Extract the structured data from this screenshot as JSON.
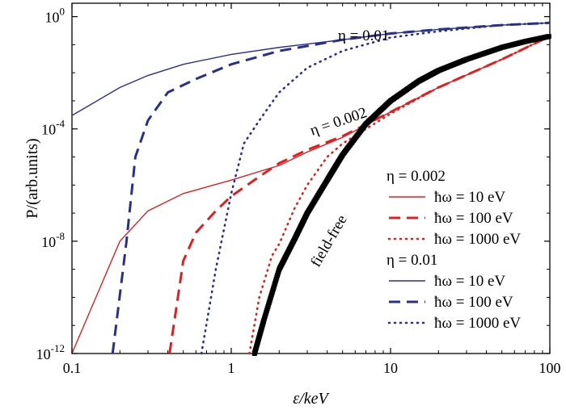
{
  "chart_data": {
    "type": "line",
    "x_scale": "log",
    "y_scale": "log",
    "xlim": [
      0.1,
      100
    ],
    "ylim": [
      1e-12,
      3
    ],
    "xlabel": "ε/keV",
    "ylabel": "P/(arb.units)",
    "x_ticks": [
      "0.1",
      "1",
      "10",
      "100"
    ],
    "y_ticks": [
      {
        "base": "10",
        "exp": "0"
      },
      {
        "base": "10",
        "exp": "-4"
      },
      {
        "base": "10",
        "exp": "-8"
      },
      {
        "base": "10",
        "exp": "-12"
      }
    ],
    "legend": {
      "position": "right",
      "groups": [
        {
          "title": "η = 0.002",
          "entries": [
            "ħω = 10 eV",
            "ħω = 100 eV",
            "ħω = 1000 eV"
          ]
        },
        {
          "title": "η = 0.01",
          "entries": [
            "ħω = 10 eV",
            "ħω = 100 eV",
            "ħω = 1000 eV"
          ]
        }
      ]
    },
    "annotations": [
      "η = 0.01",
      "η = 0.002",
      "field-free"
    ],
    "colors": {
      "eta_0002": "#e02020",
      "eta_001": "#2a2f8f",
      "field_free": "#000000"
    },
    "series": [
      {
        "name": "η = 0.002, ħω = 10 eV",
        "color": "#e02020",
        "style": "solid",
        "points": [
          [
            0.1,
            1e-12
          ],
          [
            0.2,
            1e-08
          ],
          [
            0.3,
            1.2e-07
          ],
          [
            0.5,
            5e-07
          ],
          [
            1,
            1.5e-06
          ],
          [
            2,
            5e-06
          ],
          [
            3,
            1.5e-05
          ],
          [
            5,
            5e-05
          ],
          [
            10,
            0.0004
          ],
          [
            20,
            0.003
          ],
          [
            50,
            0.03
          ],
          [
            100,
            0.2
          ]
        ]
      },
      {
        "name": "η = 0.002, ħω = 100 eV",
        "color": "#e02020",
        "style": "dashed",
        "points": [
          [
            0.41,
            1e-12
          ],
          [
            0.5,
            2e-09
          ],
          [
            0.6,
            2e-08
          ],
          [
            0.8,
            1.2e-07
          ],
          [
            1,
            4e-07
          ],
          [
            1.5,
            2e-06
          ],
          [
            2,
            6e-06
          ],
          [
            3,
            1.8e-05
          ],
          [
            5,
            5.5e-05
          ],
          [
            10,
            0.0004
          ],
          [
            20,
            0.003
          ],
          [
            50,
            0.03
          ],
          [
            100,
            0.2
          ]
        ]
      },
      {
        "name": "η = 0.002, ħω = 1000 eV",
        "color": "#e02020",
        "style": "dotted",
        "points": [
          [
            1.3,
            1e-12
          ],
          [
            1.5,
            1e-10
          ],
          [
            1.8,
            3e-09
          ],
          [
            2,
            8e-09
          ],
          [
            2.5,
            1.5e-07
          ],
          [
            3,
            1e-06
          ],
          [
            4,
            1e-05
          ],
          [
            5,
            3e-05
          ],
          [
            10,
            0.00035
          ],
          [
            20,
            0.003
          ],
          [
            50,
            0.03
          ],
          [
            100,
            0.2
          ]
        ]
      },
      {
        "name": "η = 0.01, ħω = 10 eV",
        "color": "#2a2f8f",
        "style": "solid",
        "points": [
          [
            0.1,
            0.0003
          ],
          [
            0.2,
            0.003
          ],
          [
            0.3,
            0.008
          ],
          [
            0.5,
            0.02
          ],
          [
            1,
            0.045
          ],
          [
            2,
            0.08
          ],
          [
            5,
            0.15
          ],
          [
            10,
            0.25
          ],
          [
            20,
            0.35
          ],
          [
            50,
            0.5
          ],
          [
            100,
            0.6
          ]
        ]
      },
      {
        "name": "η = 0.01, ħω = 100 eV",
        "color": "#2a2f8f",
        "style": "dashed",
        "points": [
          [
            0.18,
            1e-12
          ],
          [
            0.22,
            1e-08
          ],
          [
            0.25,
            1e-05
          ],
          [
            0.3,
            0.0002
          ],
          [
            0.4,
            0.002
          ],
          [
            0.6,
            0.006
          ],
          [
            1,
            0.02
          ],
          [
            2,
            0.06
          ],
          [
            5,
            0.15
          ],
          [
            10,
            0.25
          ],
          [
            20,
            0.35
          ],
          [
            50,
            0.5
          ],
          [
            100,
            0.6
          ]
        ]
      },
      {
        "name": "η = 0.01, ħω = 1000 eV",
        "color": "#2a2f8f",
        "style": "dotted",
        "points": [
          [
            0.65,
            1e-12
          ],
          [
            0.8,
            1e-09
          ],
          [
            1,
            5e-07
          ],
          [
            1.2,
            3e-05
          ],
          [
            1.5,
            0.0002
          ],
          [
            2,
            0.002
          ],
          [
            3,
            0.015
          ],
          [
            5,
            0.06
          ],
          [
            10,
            0.18
          ],
          [
            20,
            0.3
          ],
          [
            50,
            0.5
          ],
          [
            100,
            0.6
          ]
        ]
      },
      {
        "name": "field-free",
        "color": "#000000",
        "style": "markers",
        "points": [
          [
            1.4,
            1e-12
          ],
          [
            1.6,
            1.5e-11
          ],
          [
            2,
            1e-09
          ],
          [
            2.5,
            1.2e-08
          ],
          [
            3,
            1e-07
          ],
          [
            4,
            1.5e-06
          ],
          [
            5,
            1.2e-05
          ],
          [
            7,
            0.00015
          ],
          [
            10,
            0.001
          ],
          [
            15,
            0.005
          ],
          [
            20,
            0.012
          ],
          [
            30,
            0.03
          ],
          [
            50,
            0.08
          ],
          [
            70,
            0.13
          ],
          [
            100,
            0.2
          ]
        ]
      }
    ]
  }
}
